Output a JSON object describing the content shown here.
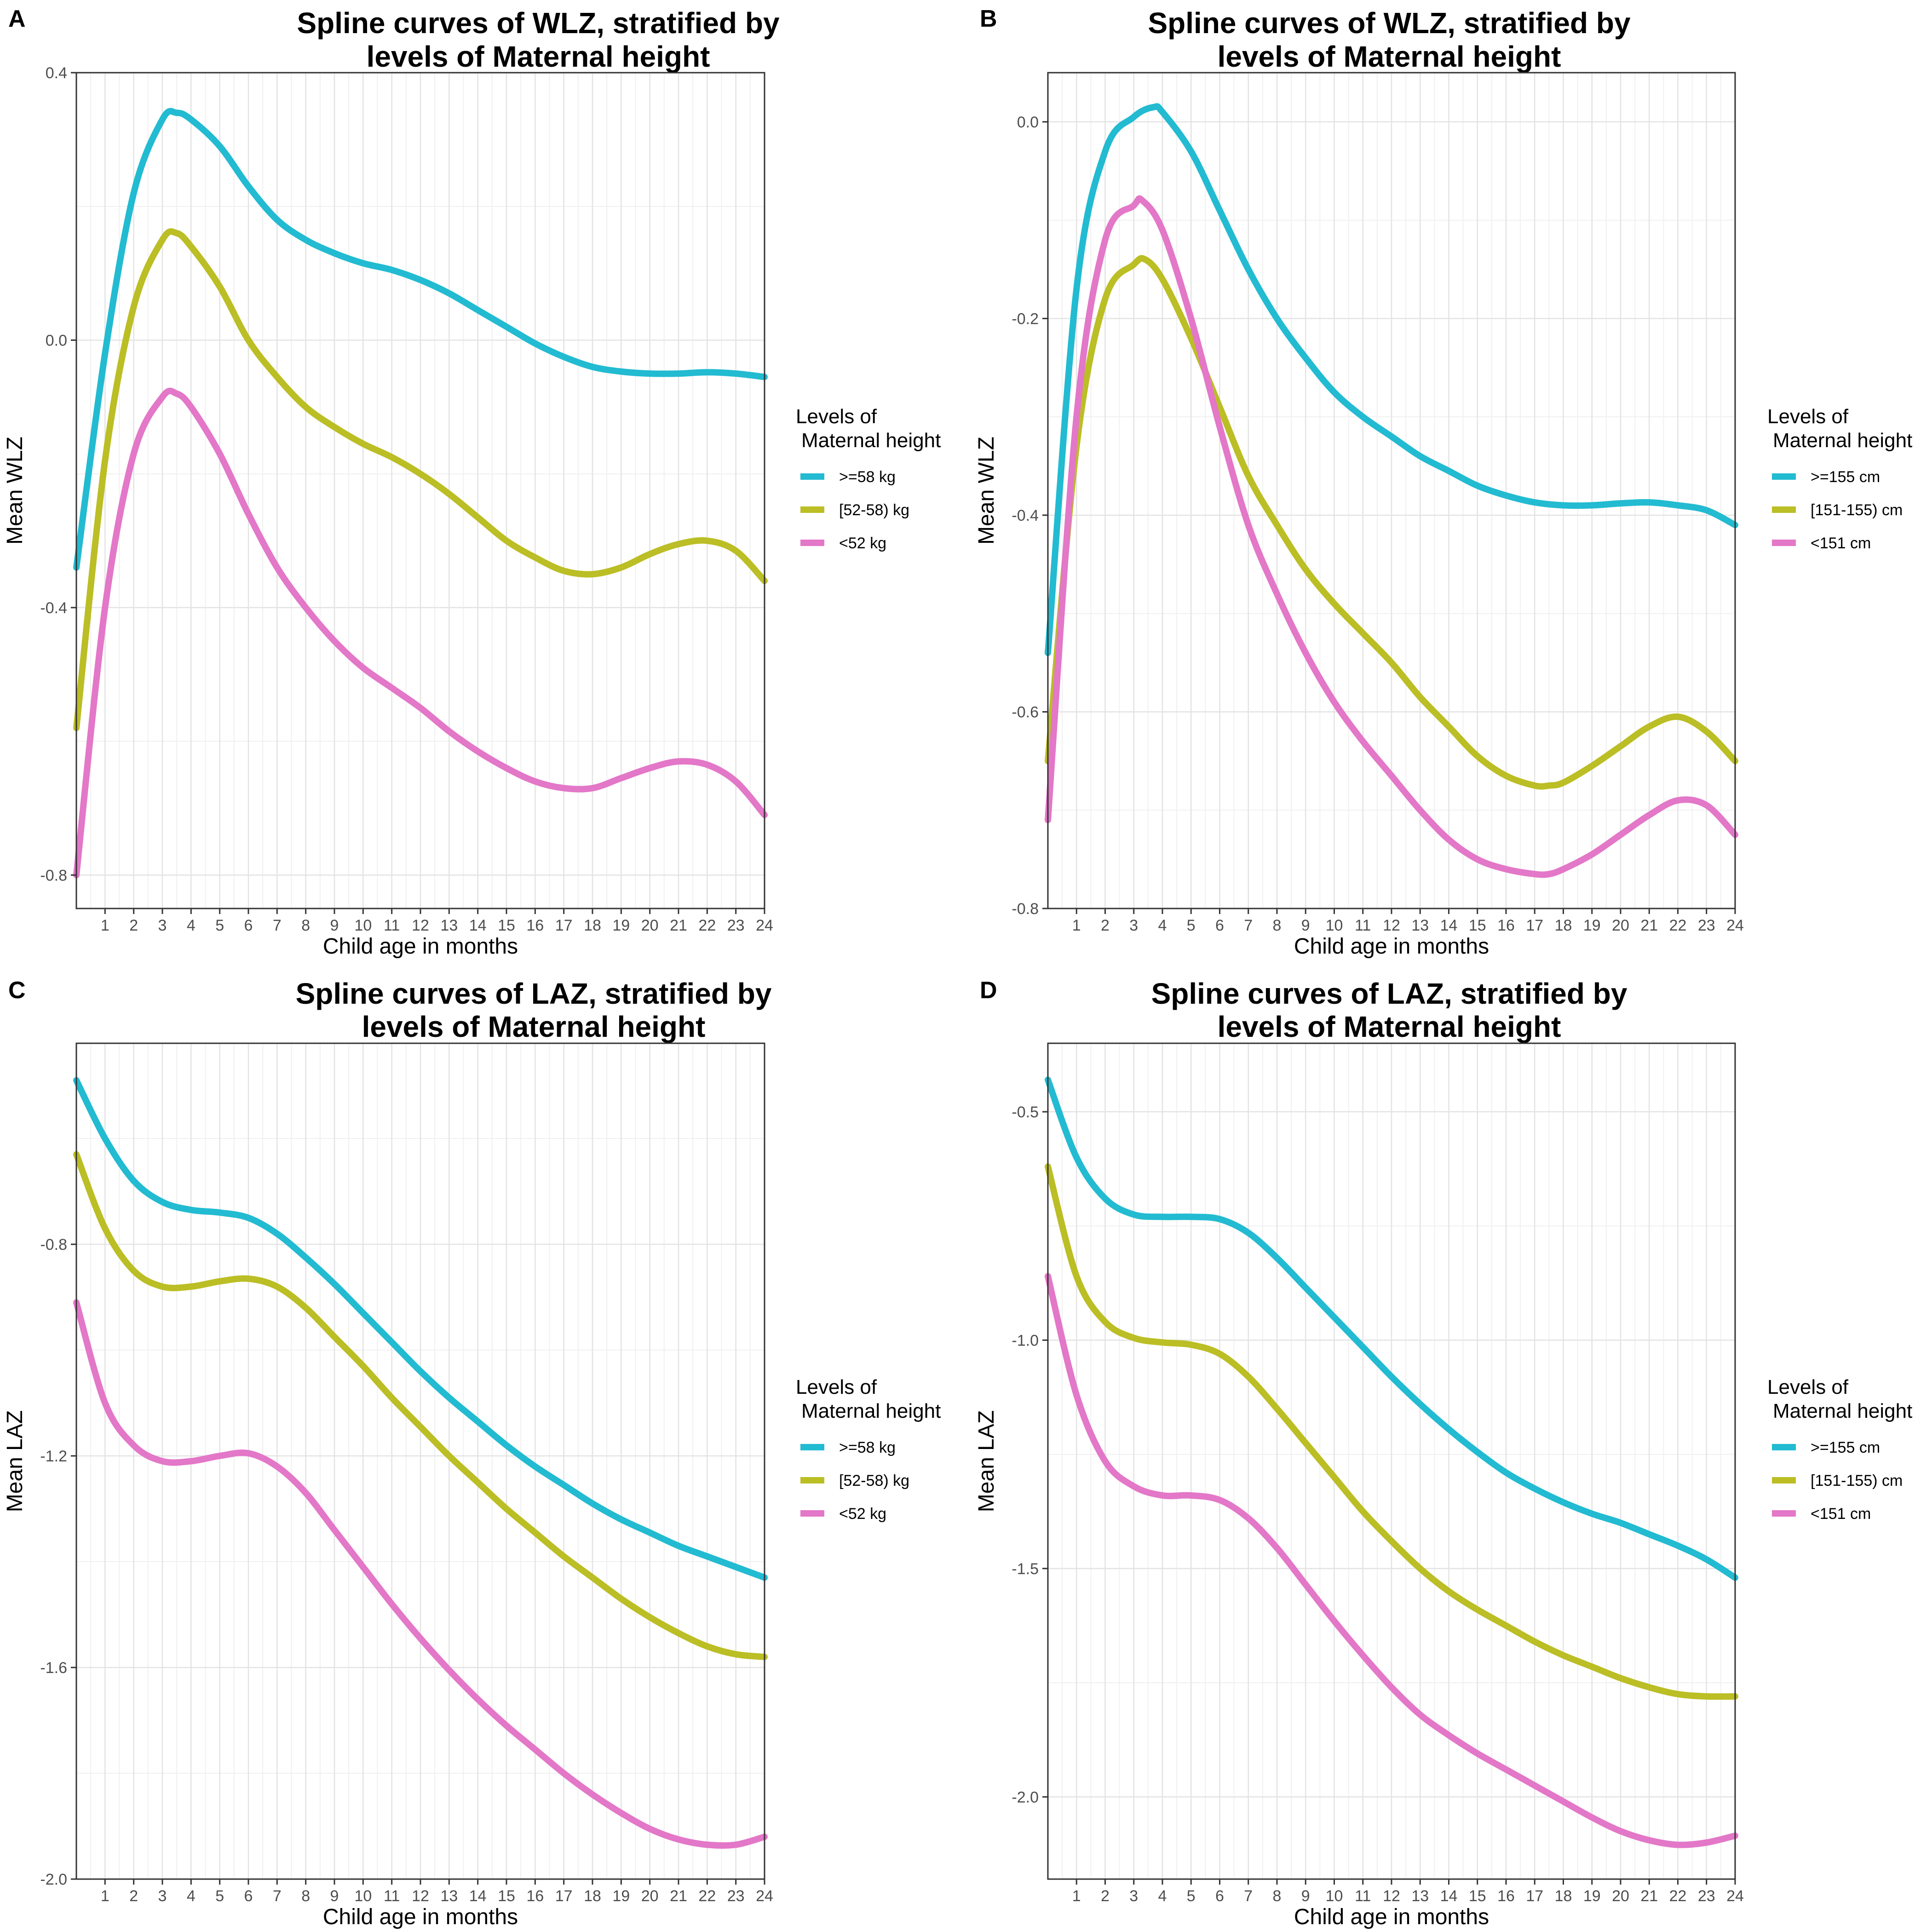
{
  "chart_data": [
    {
      "panel": "A",
      "type": "line",
      "title": "Spline curves of WLZ, stratified by levels of Maternal height",
      "title_lines": [
        "Spline curves of WLZ, stratified by",
        "levels of Maternal height"
      ],
      "xlabel": "Child age in months",
      "ylabel": "Mean WLZ",
      "xlim": [
        0,
        24
      ],
      "ylim": [
        -0.85,
        0.4
      ],
      "x_ticks": [
        1,
        2,
        3,
        4,
        5,
        6,
        7,
        8,
        9,
        10,
        11,
        12,
        13,
        14,
        15,
        16,
        17,
        18,
        19,
        20,
        21,
        22,
        23,
        24
      ],
      "y_ticks": [
        -0.8,
        -0.4,
        0.0,
        0.4
      ],
      "y_tick_labels": [
        "-0.8",
        "-0.4",
        "0.0",
        "0.4"
      ],
      "grid": true,
      "legend_title": [
        "Levels of",
        "Maternal height"
      ],
      "legend_position": "right",
      "series": [
        {
          "name": ">=58 kg",
          "color": "#22BBD1",
          "x": [
            0,
            1,
            2,
            3,
            3.5,
            4,
            5,
            6,
            7,
            8,
            9,
            10,
            11,
            12,
            13,
            14,
            15,
            16,
            17,
            18,
            19,
            20,
            21,
            22,
            23,
            24
          ],
          "y": [
            -0.34,
            -0.02,
            0.22,
            0.33,
            0.34,
            0.33,
            0.29,
            0.23,
            0.18,
            0.15,
            0.13,
            0.115,
            0.105,
            0.09,
            0.07,
            0.045,
            0.02,
            -0.005,
            -0.025,
            -0.04,
            -0.047,
            -0.05,
            -0.05,
            -0.048,
            -0.05,
            -0.055
          ]
        },
        {
          "name": "[52-58) kg",
          "color": "#BBBE24",
          "x": [
            0,
            1,
            2,
            3,
            3.5,
            4,
            5,
            6,
            7,
            8,
            9,
            10,
            11,
            12,
            13,
            14,
            15,
            16,
            17,
            18,
            19,
            20,
            21,
            22,
            23,
            24
          ],
          "y": [
            -0.58,
            -0.18,
            0.05,
            0.15,
            0.16,
            0.14,
            0.08,
            0.0,
            -0.055,
            -0.1,
            -0.13,
            -0.155,
            -0.175,
            -0.2,
            -0.23,
            -0.265,
            -0.3,
            -0.325,
            -0.345,
            -0.35,
            -0.34,
            -0.32,
            -0.305,
            -0.3,
            -0.315,
            -0.36
          ]
        },
        {
          "name": "<52 kg",
          "color": "#E377C8",
          "x": [
            0,
            1,
            2,
            3,
            3.5,
            4,
            5,
            6,
            7,
            8,
            9,
            10,
            11,
            12,
            13,
            14,
            15,
            16,
            17,
            18,
            19,
            20,
            21,
            22,
            23,
            24
          ],
          "y": [
            -0.8,
            -0.4,
            -0.17,
            -0.085,
            -0.08,
            -0.1,
            -0.17,
            -0.26,
            -0.34,
            -0.4,
            -0.45,
            -0.49,
            -0.52,
            -0.55,
            -0.585,
            -0.615,
            -0.64,
            -0.66,
            -0.67,
            -0.67,
            -0.655,
            -0.64,
            -0.63,
            -0.635,
            -0.66,
            -0.71
          ]
        }
      ]
    },
    {
      "panel": "B",
      "type": "line",
      "title": "Spline curves of WLZ, stratified by levels of Maternal height",
      "title_lines": [
        "Spline curves of WLZ, stratified by",
        "levels of Maternal height"
      ],
      "xlabel": "Child age in months",
      "ylabel": "Mean WLZ",
      "xlim": [
        0,
        24
      ],
      "ylim": [
        -0.8,
        0.05
      ],
      "x_ticks": [
        1,
        2,
        3,
        4,
        5,
        6,
        7,
        8,
        9,
        10,
        11,
        12,
        13,
        14,
        15,
        16,
        17,
        18,
        19,
        20,
        21,
        22,
        23,
        24
      ],
      "y_ticks": [
        -0.8,
        -0.6,
        -0.4,
        -0.2,
        0.0
      ],
      "y_tick_labels": [
        "-0.8",
        "-0.6",
        "-0.4",
        "-0.2",
        "0.0"
      ],
      "grid": true,
      "legend_title": [
        "Levels of",
        "Maternal height"
      ],
      "legend_position": "right",
      "series": [
        {
          "name": ">=155 cm",
          "color": "#22BBD1",
          "x": [
            0,
            1,
            2,
            3,
            3.7,
            4,
            5,
            6,
            7,
            8,
            9,
            10,
            11,
            12,
            13,
            14,
            15,
            16,
            17,
            18,
            19,
            20,
            21,
            22,
            23,
            24
          ],
          "y": [
            -0.54,
            -0.17,
            -0.03,
            0.005,
            0.015,
            0.01,
            -0.03,
            -0.09,
            -0.15,
            -0.2,
            -0.24,
            -0.275,
            -0.3,
            -0.32,
            -0.34,
            -0.355,
            -0.37,
            -0.38,
            -0.387,
            -0.39,
            -0.39,
            -0.388,
            -0.387,
            -0.39,
            -0.395,
            -0.41
          ]
        },
        {
          "name": "[151-155) cm",
          "color": "#BBBE24",
          "x": [
            0,
            1,
            2,
            3,
            3.4,
            4,
            5,
            6,
            7,
            8,
            9,
            10,
            11,
            12,
            13,
            14,
            15,
            16,
            17,
            17.5,
            18,
            19,
            20,
            21,
            22,
            23,
            24
          ],
          "y": [
            -0.65,
            -0.33,
            -0.18,
            -0.145,
            -0.14,
            -0.16,
            -0.22,
            -0.29,
            -0.36,
            -0.41,
            -0.455,
            -0.49,
            -0.52,
            -0.55,
            -0.585,
            -0.615,
            -0.645,
            -0.665,
            -0.675,
            -0.675,
            -0.672,
            -0.655,
            -0.635,
            -0.615,
            -0.605,
            -0.62,
            -0.65
          ]
        },
        {
          "name": "<151 cm",
          "color": "#E377C8",
          "x": [
            0,
            1,
            2,
            3,
            3.3,
            4,
            5,
            6,
            7,
            8,
            9,
            10,
            11,
            12,
            13,
            14,
            15,
            16,
            17,
            17.5,
            18,
            19,
            20,
            21,
            22,
            23,
            24
          ],
          "y": [
            -0.71,
            -0.3,
            -0.12,
            -0.085,
            -0.08,
            -0.11,
            -0.2,
            -0.31,
            -0.41,
            -0.48,
            -0.54,
            -0.59,
            -0.63,
            -0.665,
            -0.7,
            -0.73,
            -0.75,
            -0.76,
            -0.765,
            -0.765,
            -0.76,
            -0.745,
            -0.725,
            -0.705,
            -0.69,
            -0.695,
            -0.725
          ]
        }
      ]
    },
    {
      "panel": "C",
      "type": "line",
      "title": "Spline curves of LAZ, stratified by levels of Maternal height",
      "title_lines": [
        "Spline curves of LAZ, stratified by",
        "levels of Maternal height"
      ],
      "xlabel": "Child age in months",
      "ylabel": "Mean LAZ",
      "xlim": [
        0,
        24
      ],
      "ylim": [
        -2.0,
        -0.42
      ],
      "x_ticks": [
        1,
        2,
        3,
        4,
        5,
        6,
        7,
        8,
        9,
        10,
        11,
        12,
        13,
        14,
        15,
        16,
        17,
        18,
        19,
        20,
        21,
        22,
        23,
        24
      ],
      "y_ticks": [
        -2.0,
        -1.6,
        -1.2,
        -0.8
      ],
      "y_tick_labels": [
        "-2.0",
        "-1.6",
        "-1.2",
        "-0.8"
      ],
      "grid": true,
      "legend_title": [
        "Levels of",
        "Maternal height"
      ],
      "legend_position": "right",
      "series": [
        {
          "name": ">=58 kg",
          "color": "#22BBD1",
          "x": [
            0,
            1,
            2,
            3,
            4,
            5,
            6,
            7,
            8,
            9,
            10,
            11,
            12,
            13,
            14,
            15,
            16,
            17,
            18,
            19,
            20,
            21,
            22,
            23,
            24
          ],
          "y": [
            -0.49,
            -0.6,
            -0.68,
            -0.72,
            -0.735,
            -0.74,
            -0.75,
            -0.78,
            -0.825,
            -0.875,
            -0.93,
            -0.985,
            -1.04,
            -1.09,
            -1.135,
            -1.18,
            -1.22,
            -1.255,
            -1.29,
            -1.32,
            -1.345,
            -1.37,
            -1.39,
            -1.41,
            -1.43
          ]
        },
        {
          "name": "[52-58) kg",
          "color": "#BBBE24",
          "x": [
            0,
            1,
            2,
            3,
            4,
            5,
            6,
            7,
            8,
            9,
            10,
            11,
            12,
            13,
            14,
            15,
            16,
            17,
            18,
            19,
            20,
            21,
            22,
            23,
            24
          ],
          "y": [
            -0.63,
            -0.77,
            -0.85,
            -0.88,
            -0.88,
            -0.87,
            -0.865,
            -0.88,
            -0.92,
            -0.975,
            -1.03,
            -1.09,
            -1.145,
            -1.2,
            -1.25,
            -1.3,
            -1.345,
            -1.39,
            -1.43,
            -1.47,
            -1.505,
            -1.535,
            -1.56,
            -1.575,
            -1.58
          ]
        },
        {
          "name": "<52 kg",
          "color": "#E377C8",
          "x": [
            0,
            1,
            2,
            3,
            4,
            5,
            6,
            7,
            8,
            9,
            10,
            11,
            12,
            13,
            14,
            15,
            16,
            17,
            18,
            19,
            20,
            21,
            22,
            23,
            24
          ],
          "y": [
            -0.91,
            -1.1,
            -1.18,
            -1.21,
            -1.21,
            -1.2,
            -1.195,
            -1.22,
            -1.27,
            -1.34,
            -1.41,
            -1.48,
            -1.545,
            -1.605,
            -1.66,
            -1.71,
            -1.755,
            -1.8,
            -1.84,
            -1.875,
            -1.905,
            -1.925,
            -1.935,
            -1.935,
            -1.92
          ]
        }
      ]
    },
    {
      "panel": "D",
      "type": "line",
      "title": "Spline curves of LAZ, stratified by levels of Maternal height",
      "title_lines": [
        "Spline curves of LAZ, stratified by",
        "levels of Maternal height"
      ],
      "xlabel": "Child age in months",
      "ylabel": "Mean LAZ",
      "xlim": [
        0,
        24
      ],
      "ylim": [
        -2.18,
        -0.35
      ],
      "x_ticks": [
        1,
        2,
        3,
        4,
        5,
        6,
        7,
        8,
        9,
        10,
        11,
        12,
        13,
        14,
        15,
        16,
        17,
        18,
        19,
        20,
        21,
        22,
        23,
        24
      ],
      "y_ticks": [
        -2.0,
        -1.5,
        -1.0,
        -0.5
      ],
      "y_tick_labels": [
        "-2.0",
        "-1.5",
        "-1.0",
        "-0.5"
      ],
      "grid": true,
      "legend_title": [
        "Levels of",
        "Maternal height"
      ],
      "legend_position": "right",
      "series": [
        {
          "name": ">=155 cm",
          "color": "#22BBD1",
          "x": [
            0,
            1,
            2,
            3,
            4,
            5,
            6,
            7,
            8,
            9,
            10,
            11,
            12,
            13,
            14,
            15,
            16,
            17,
            18,
            19,
            20,
            21,
            22,
            23,
            24
          ],
          "y": [
            -0.43,
            -0.6,
            -0.69,
            -0.725,
            -0.73,
            -0.73,
            -0.735,
            -0.765,
            -0.82,
            -0.885,
            -0.95,
            -1.015,
            -1.08,
            -1.14,
            -1.195,
            -1.245,
            -1.29,
            -1.325,
            -1.355,
            -1.38,
            -1.4,
            -1.425,
            -1.45,
            -1.48,
            -1.52
          ]
        },
        {
          "name": "[151-155) cm",
          "color": "#BBBE24",
          "x": [
            0,
            1,
            2,
            3,
            4,
            5,
            6,
            7,
            8,
            9,
            10,
            11,
            12,
            13,
            14,
            15,
            16,
            17,
            18,
            19,
            20,
            21,
            22,
            23,
            24
          ],
          "y": [
            -0.62,
            -0.86,
            -0.96,
            -0.995,
            -1.005,
            -1.01,
            -1.03,
            -1.08,
            -1.15,
            -1.225,
            -1.3,
            -1.375,
            -1.44,
            -1.5,
            -1.55,
            -1.59,
            -1.625,
            -1.66,
            -1.69,
            -1.715,
            -1.74,
            -1.76,
            -1.775,
            -1.78,
            -1.78
          ]
        },
        {
          "name": "<151 cm",
          "color": "#E377C8",
          "x": [
            0,
            1,
            2,
            3,
            4,
            5,
            6,
            7,
            8,
            9,
            10,
            11,
            12,
            13,
            14,
            15,
            16,
            17,
            18,
            19,
            20,
            21,
            22,
            23,
            24
          ],
          "y": [
            -0.86,
            -1.12,
            -1.265,
            -1.32,
            -1.34,
            -1.34,
            -1.35,
            -1.39,
            -1.455,
            -1.535,
            -1.615,
            -1.69,
            -1.76,
            -1.82,
            -1.865,
            -1.905,
            -1.94,
            -1.975,
            -2.01,
            -2.045,
            -2.075,
            -2.095,
            -2.105,
            -2.1,
            -2.085
          ]
        }
      ]
    }
  ]
}
